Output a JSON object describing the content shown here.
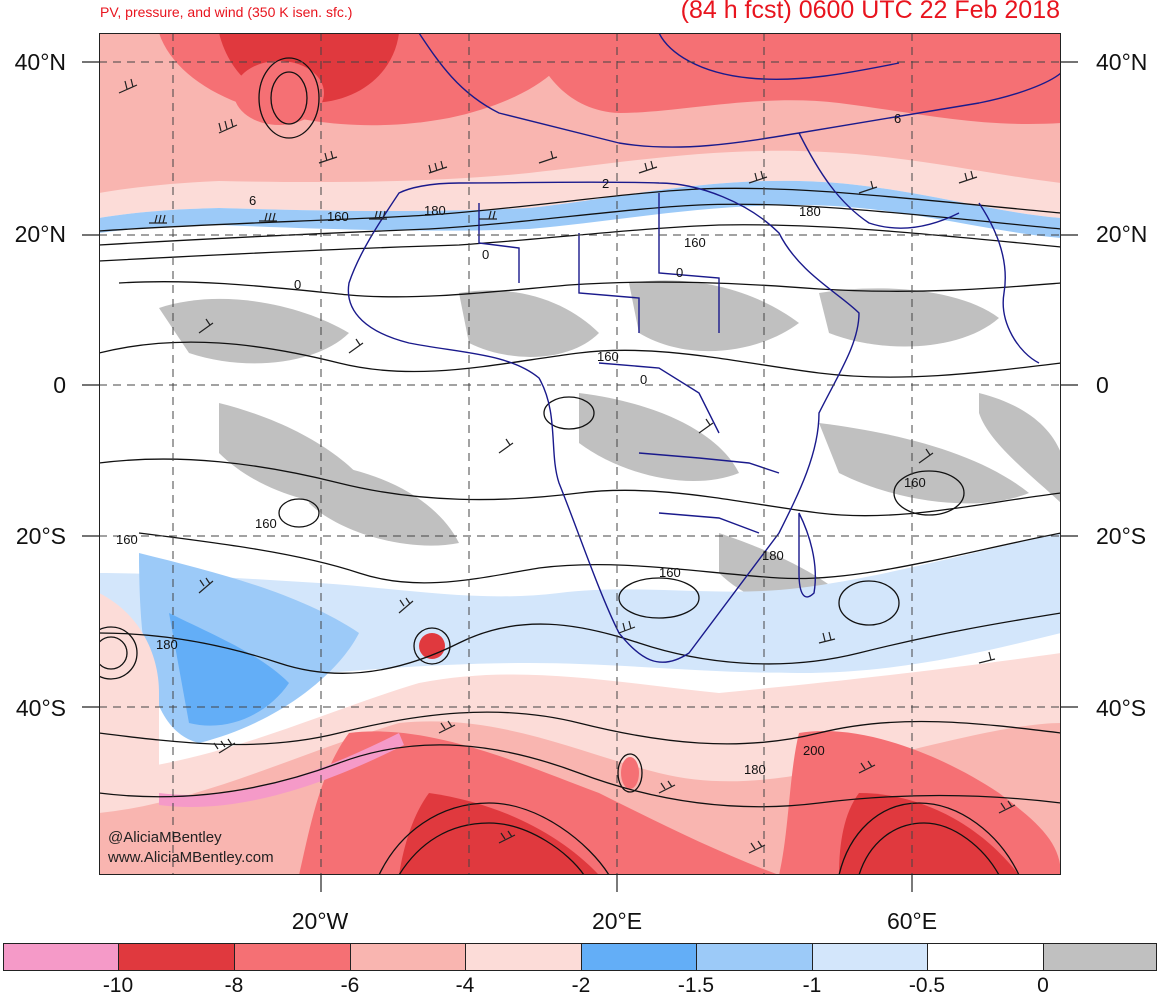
{
  "header": {
    "subtitle": "PV, pressure, and wind (350 K isen. sfc.)",
    "title": "(84 h fcst) 0600 UTC 22 Feb 2018"
  },
  "map": {
    "lat_labels": [
      "40°N",
      "20°N",
      "0",
      "20°S",
      "40°S"
    ],
    "lon_labels": [
      "20°W",
      "20°E",
      "60°E"
    ],
    "contour_labels": [
      "6",
      "6",
      "2",
      "160",
      "180",
      "180",
      "160",
      "0",
      "0",
      "0",
      "160",
      "0",
      "160",
      "160",
      "160",
      "180",
      "160",
      "180",
      "200",
      "180"
    ],
    "watermark_handle": "@AliciaMBentley",
    "watermark_url": "www.AliciaMBentley.com"
  },
  "colorbar": {
    "labels": [
      "-10",
      "-8",
      "-6",
      "-4",
      "-2",
      "-1.5",
      "-1",
      "-0.5",
      "0"
    ],
    "colors": [
      "#f59ac8",
      "#e0393e",
      "#f57074",
      "#f9b5b0",
      "#fcdcd8",
      "#63aef7",
      "#9ccaf8",
      "#d3e6fb",
      "#ffffff",
      "#c0c0c0"
    ]
  }
}
